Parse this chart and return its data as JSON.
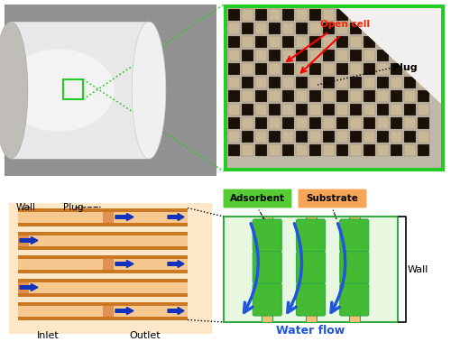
{
  "bg_color": "#ffffff",
  "green_box_color": "#22cc22",
  "open_cell_text": "Open cell",
  "open_cell_color": "#ff2200",
  "plug_text": "Plug",
  "adsorbent_text": "Adsorbent",
  "adsorbent_bg": "#55cc33",
  "substrate_text": "Substrate",
  "substrate_bg": "#f5a555",
  "wall_text": "Wall",
  "inlet_text": "Inlet",
  "outlet_text": "Outlet",
  "plug_label": "Plug",
  "wall_label": "Wall",
  "water_flow_text": "Water flow",
  "water_flow_color": "#2255dd",
  "orange_dark": "#cc7722",
  "orange_light": "#f5c890",
  "orange_bg": "#fce8c8",
  "green_diagram_bg": "#e8f8e0",
  "green_diagram": "#33aa44",
  "green_adsorbent": "#44bb33",
  "arrow_color": "#1133bb",
  "gray_dark": "#888888",
  "gray_medium": "#b0b0b0",
  "gray_light": "#d8d8d8",
  "gray_bg": "#909090"
}
